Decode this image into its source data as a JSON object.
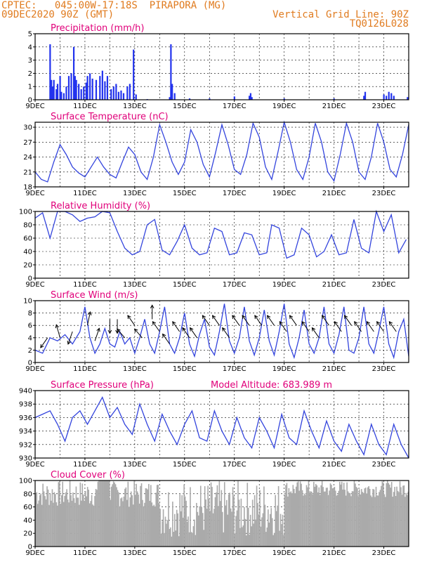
{
  "header": {
    "line1": "CPTEC:   045:00W-17:18S  PIRAPORA (MG)",
    "line2": "09DEC2020 90Z (GMT)",
    "right1": "Vertical Grid Line: 90Z",
    "right2": "TQ0126L028"
  },
  "colors": {
    "line": "#3344dd",
    "bar": "#2233ee",
    "cloud": "#aaaaaa",
    "title": "#e0007a",
    "header": "#e07b1f"
  },
  "x_ticks": [
    "9DEC",
    "11DEC",
    "13DEC",
    "15DEC",
    "17DEC",
    "19DEC",
    "21DEC",
    "23DEC"
  ],
  "chart_data": [
    {
      "type": "bar",
      "title": "Precipitation (mm/h)",
      "ylim": [
        0,
        5
      ],
      "yticks": [
        0,
        1,
        2,
        3,
        4,
        5
      ],
      "x_range_days": [
        0,
        15
      ],
      "points": [
        [
          0.6,
          4.2
        ],
        [
          0.65,
          1.5
        ],
        [
          0.7,
          1.0
        ],
        [
          0.75,
          1.5
        ],
        [
          0.85,
          0.8
        ],
        [
          0.9,
          1.2
        ],
        [
          1.0,
          1.8
        ],
        [
          1.05,
          0.6
        ],
        [
          1.15,
          0.5
        ],
        [
          1.25,
          1.0
        ],
        [
          1.35,
          1.8
        ],
        [
          1.45,
          2.0
        ],
        [
          1.55,
          4.0
        ],
        [
          1.6,
          1.8
        ],
        [
          1.65,
          1.5
        ],
        [
          1.75,
          1.2
        ],
        [
          1.85,
          0.8
        ],
        [
          1.95,
          1.0
        ],
        [
          2.05,
          1.3
        ],
        [
          2.1,
          1.8
        ],
        [
          2.2,
          2.0
        ],
        [
          2.3,
          1.6
        ],
        [
          2.45,
          1.5
        ],
        [
          2.6,
          1.8
        ],
        [
          2.7,
          2.2
        ],
        [
          2.8,
          1.4
        ],
        [
          2.9,
          1.8
        ],
        [
          3.05,
          0.8
        ],
        [
          3.15,
          1.0
        ],
        [
          3.25,
          1.2
        ],
        [
          3.35,
          0.6
        ],
        [
          3.45,
          0.7
        ],
        [
          3.55,
          0.5
        ],
        [
          3.7,
          1.0
        ],
        [
          3.8,
          1.2
        ],
        [
          3.95,
          3.8
        ],
        [
          4.05,
          0.4
        ],
        [
          4.5,
          0.05
        ],
        [
          5.4,
          0.2
        ],
        [
          5.45,
          4.2
        ],
        [
          5.5,
          1.2
        ],
        [
          5.6,
          0.5
        ],
        [
          6.2,
          0.1
        ],
        [
          7.0,
          0.1
        ],
        [
          8.0,
          0.25
        ],
        [
          8.6,
          0.3
        ],
        [
          8.65,
          0.5
        ],
        [
          8.7,
          0.2
        ],
        [
          10.0,
          0.1
        ],
        [
          12.0,
          0.1
        ],
        [
          13.2,
          0.3
        ],
        [
          13.25,
          0.6
        ],
        [
          14.0,
          0.4
        ],
        [
          14.1,
          0.3
        ],
        [
          14.2,
          0.6
        ],
        [
          14.3,
          0.5
        ],
        [
          14.4,
          0.3
        ],
        [
          14.95,
          0.2
        ]
      ]
    },
    {
      "type": "line",
      "title": "Surface Temperature (nC)",
      "ylim": [
        18,
        31
      ],
      "yticks": [
        18,
        21,
        24,
        27,
        30
      ],
      "x_range_days": [
        0,
        15
      ],
      "x": [
        0,
        0.25,
        0.5,
        0.75,
        1.0,
        1.25,
        1.5,
        1.75,
        2.0,
        2.25,
        2.5,
        2.75,
        3.0,
        3.25,
        3.5,
        3.75,
        4.0,
        4.25,
        4.5,
        4.75,
        5.0,
        5.25,
        5.5,
        5.75,
        6.0,
        6.25,
        6.5,
        6.75,
        7.0,
        7.25,
        7.5,
        7.75,
        8.0,
        8.25,
        8.5,
        8.75,
        9.0,
        9.25,
        9.5,
        9.75,
        10.0,
        10.25,
        10.5,
        10.75,
        11.0,
        11.25,
        11.5,
        11.75,
        12.0,
        12.25,
        12.5,
        12.75,
        13.0,
        13.25,
        13.5,
        13.75,
        14.0,
        14.25,
        14.5,
        14.75,
        15.0
      ],
      "y": [
        21,
        19.5,
        19,
        23,
        26.5,
        24.5,
        22,
        20.8,
        20,
        22,
        24,
        22,
        20.5,
        19.8,
        23,
        26,
        24.5,
        21,
        19.5,
        24,
        30.5,
        27,
        23,
        20.5,
        23,
        29.5,
        27,
        22.5,
        20,
        25,
        30.5,
        26.5,
        21.5,
        20.5,
        24.5,
        30.8,
        28,
        22,
        19.5,
        25,
        31,
        27,
        21.5,
        19.5,
        24,
        30.8,
        27,
        21,
        19.2,
        24.5,
        30.8,
        27,
        21,
        19.5,
        24,
        30.8,
        27,
        21.5,
        20,
        24.5,
        30.5
      ]
    },
    {
      "type": "line",
      "title": "Relative Humidity (%)",
      "ylim": [
        0,
        100
      ],
      "yticks": [
        0,
        20,
        40,
        60,
        80,
        100
      ],
      "x_range_days": [
        0,
        15
      ],
      "x": [
        0,
        0.3,
        0.6,
        0.9,
        1.2,
        1.5,
        1.8,
        2.1,
        2.4,
        2.7,
        3.0,
        3.3,
        3.6,
        3.9,
        4.2,
        4.5,
        4.8,
        5.1,
        5.4,
        5.7,
        6.0,
        6.3,
        6.6,
        6.9,
        7.2,
        7.5,
        7.8,
        8.1,
        8.4,
        8.7,
        9.0,
        9.3,
        9.5,
        9.8,
        10.1,
        10.4,
        10.7,
        11.0,
        11.3,
        11.6,
        11.9,
        12.2,
        12.5,
        12.8,
        13.1,
        13.4,
        13.7,
        14.0,
        14.3,
        14.6,
        14.9
      ],
      "y": [
        90,
        98,
        60,
        100,
        100,
        95,
        85,
        90,
        92,
        100,
        98,
        70,
        45,
        35,
        40,
        80,
        88,
        42,
        35,
        55,
        80,
        45,
        35,
        38,
        75,
        70,
        35,
        38,
        68,
        65,
        35,
        38,
        80,
        75,
        30,
        35,
        75,
        65,
        32,
        40,
        65,
        35,
        38,
        88,
        45,
        38,
        100,
        70,
        95,
        38,
        58
      ]
    },
    {
      "type": "line",
      "title": "Surface Wind (m/s)",
      "ylim": [
        0,
        10
      ],
      "yticks": [
        0,
        2,
        4,
        6,
        8,
        10
      ],
      "x_range_days": [
        0,
        15
      ],
      "x": [
        0,
        0.3,
        0.6,
        0.9,
        1.2,
        1.5,
        1.8,
        2.0,
        2.2,
        2.4,
        2.6,
        2.8,
        3.0,
        3.2,
        3.4,
        3.6,
        3.8,
        4.0,
        4.2,
        4.4,
        4.6,
        4.8,
        5.0,
        5.2,
        5.4,
        5.6,
        5.8,
        6.0,
        6.2,
        6.4,
        6.6,
        6.8,
        7.0,
        7.2,
        7.4,
        7.6,
        7.8,
        8.0,
        8.2,
        8.4,
        8.6,
        8.8,
        9.0,
        9.2,
        9.4,
        9.6,
        9.8,
        10.0,
        10.2,
        10.4,
        10.6,
        10.8,
        11.0,
        11.2,
        11.4,
        11.6,
        11.8,
        12.0,
        12.2,
        12.4,
        12.6,
        12.8,
        13.0,
        13.2,
        13.4,
        13.6,
        13.8,
        14.0,
        14.2,
        14.4,
        14.6,
        14.8,
        15.0
      ],
      "y": [
        2,
        1.5,
        4,
        3.5,
        4.5,
        3,
        5,
        9,
        4,
        1.5,
        3,
        5.5,
        3,
        2.5,
        5,
        3,
        4,
        1.5,
        4,
        7,
        3,
        1.5,
        5,
        9,
        3,
        1.5,
        4,
        8,
        3,
        1,
        4.5,
        7,
        2.5,
        1.2,
        5,
        9.5,
        3.5,
        1.5,
        4,
        9,
        3.5,
        1.2,
        4,
        8.5,
        3.5,
        1.2,
        5,
        9.5,
        3,
        0.8,
        4,
        8.5,
        3,
        1.5,
        4,
        9,
        3,
        1.5,
        4.5,
        9,
        2,
        1.5,
        4,
        9,
        3,
        1.5,
        5,
        9,
        3,
        0.8,
        5,
        7,
        1
      ],
      "arrows": [
        [
          0.5,
          4,
          -1,
          1
        ],
        [
          1.0,
          4,
          -0.4,
          -1
        ],
        [
          1.5,
          5,
          -0.5,
          1
        ],
        [
          2.1,
          6,
          0.3,
          -1
        ],
        [
          2.4,
          3.5,
          0.5,
          -1
        ],
        [
          3.0,
          7,
          0,
          1
        ],
        [
          3.3,
          7,
          0,
          1
        ],
        [
          3.6,
          4,
          -1,
          -0.8
        ],
        [
          4.0,
          6,
          -1,
          -1
        ],
        [
          4.3,
          4,
          -1,
          -0.8
        ],
        [
          4.7,
          7,
          0,
          -1
        ],
        [
          5.0,
          5,
          -1,
          -1
        ],
        [
          5.4,
          3,
          -1,
          -1
        ],
        [
          5.8,
          5,
          -1,
          -1
        ],
        [
          6.2,
          4,
          -1,
          -1
        ],
        [
          6.5,
          4,
          -1,
          -1
        ],
        [
          7.0,
          6,
          -1,
          -1
        ],
        [
          7.4,
          6,
          -1,
          -1
        ],
        [
          7.8,
          4,
          -1,
          -1
        ],
        [
          8.2,
          6,
          -1,
          -1
        ],
        [
          8.6,
          6,
          -1,
          -1
        ],
        [
          9.1,
          6,
          -1,
          -1
        ],
        [
          9.6,
          6,
          -1,
          -1
        ],
        [
          10.1,
          5,
          -1,
          -1
        ],
        [
          10.5,
          6,
          -1,
          -1
        ],
        [
          11.0,
          5,
          -1,
          -1
        ],
        [
          11.4,
          4,
          -1,
          -1
        ],
        [
          11.8,
          6,
          -1,
          -1
        ],
        [
          12.3,
          5,
          -1,
          -1
        ],
        [
          12.7,
          6,
          -1,
          -1
        ],
        [
          13.1,
          5,
          -1,
          -1
        ],
        [
          13.6,
          5,
          -1,
          -1
        ],
        [
          14.0,
          5,
          -1,
          -1
        ],
        [
          14.5,
          5,
          -1,
          -1
        ]
      ]
    },
    {
      "type": "line",
      "title": "Surface Pressure (hPa)",
      "annotation": "Model Altitude: 683.989 m",
      "ylim": [
        930,
        940
      ],
      "yticks": [
        930,
        932,
        934,
        936,
        938,
        940
      ],
      "x_range_days": [
        0,
        15
      ],
      "x": [
        0,
        0.3,
        0.6,
        0.9,
        1.2,
        1.5,
        1.8,
        2.1,
        2.4,
        2.7,
        3.0,
        3.3,
        3.6,
        3.9,
        4.2,
        4.5,
        4.8,
        5.1,
        5.4,
        5.7,
        6.0,
        6.3,
        6.6,
        6.9,
        7.2,
        7.5,
        7.8,
        8.1,
        8.4,
        8.7,
        9.0,
        9.3,
        9.6,
        9.9,
        10.2,
        10.5,
        10.8,
        11.1,
        11.4,
        11.7,
        12.0,
        12.3,
        12.6,
        12.9,
        13.2,
        13.5,
        13.8,
        14.1,
        14.4,
        14.7,
        15.0
      ],
      "y": [
        936,
        936.5,
        937,
        935,
        932.5,
        936,
        937,
        935,
        937,
        939,
        936,
        937.5,
        935,
        933.5,
        938,
        935,
        932.5,
        936.5,
        934,
        932,
        935,
        937,
        933,
        932.5,
        937,
        934,
        932,
        936,
        933,
        931.5,
        936,
        934,
        931.5,
        936.5,
        933,
        932,
        937,
        934,
        931.5,
        935.5,
        932.5,
        931,
        935,
        932.5,
        930.5,
        935,
        932,
        930.5,
        935,
        932,
        930
      ]
    },
    {
      "type": "bar",
      "title": "Cloud Cover (%)",
      "ylim": [
        0,
        100
      ],
      "yticks": [
        0,
        20,
        40,
        60,
        80,
        100
      ],
      "x_range_days": [
        0,
        15
      ]
    }
  ]
}
